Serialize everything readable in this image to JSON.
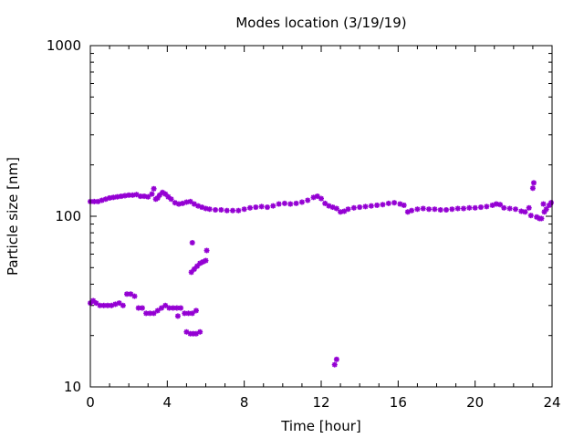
{
  "chart_data": {
    "type": "scatter",
    "title": "Modes location (3/19/19)",
    "xlabel": "Time [hour]",
    "ylabel": "Particle size [nm]",
    "xlim": [
      0,
      24
    ],
    "ylim": [
      10,
      1000
    ],
    "y_scale": "log",
    "grid": false,
    "marker_color": "#9400d3",
    "x_ticks": [
      {
        "value": 0,
        "label": "0"
      },
      {
        "value": 4,
        "label": "4"
      },
      {
        "value": 8,
        "label": "8"
      },
      {
        "value": 12,
        "label": "12"
      },
      {
        "value": 16,
        "label": "16"
      },
      {
        "value": 20,
        "label": "20"
      },
      {
        "value": 24,
        "label": "24"
      }
    ],
    "y_ticks": [
      {
        "value": 10,
        "label": "10"
      },
      {
        "value": 100,
        "label": "100"
      },
      {
        "value": 1000,
        "label": "1000"
      }
    ],
    "series": [
      {
        "points": [
          [
            0.0,
            122
          ],
          [
            0.2,
            122
          ],
          [
            0.4,
            122
          ],
          [
            0.6,
            124
          ],
          [
            0.8,
            126
          ],
          [
            1.0,
            128
          ],
          [
            1.2,
            129
          ],
          [
            1.4,
            130
          ],
          [
            1.6,
            131
          ],
          [
            1.8,
            132
          ],
          [
            2.0,
            133
          ],
          [
            2.2,
            133
          ],
          [
            2.4,
            134
          ],
          [
            2.6,
            131
          ],
          [
            2.8,
            131
          ],
          [
            3.0,
            130
          ],
          [
            3.2,
            135
          ],
          [
            3.3,
            145
          ],
          [
            3.4,
            126
          ],
          [
            3.5,
            128
          ],
          [
            3.6,
            133
          ],
          [
            3.75,
            138
          ],
          [
            3.9,
            135
          ],
          [
            4.05,
            130
          ],
          [
            4.2,
            126
          ],
          [
            4.4,
            120
          ],
          [
            4.6,
            118
          ],
          [
            4.8,
            119
          ],
          [
            5.0,
            121
          ],
          [
            5.2,
            122
          ],
          [
            5.4,
            118
          ],
          [
            5.6,
            115
          ],
          [
            5.8,
            113
          ],
          [
            6.0,
            111
          ],
          [
            6.2,
            110
          ],
          [
            6.5,
            109
          ],
          [
            6.8,
            109
          ],
          [
            7.1,
            108
          ],
          [
            7.4,
            108
          ],
          [
            7.7,
            108
          ],
          [
            8.0,
            110
          ],
          [
            8.3,
            112
          ],
          [
            8.6,
            113
          ],
          [
            8.9,
            114
          ],
          [
            9.2,
            113
          ],
          [
            9.5,
            115
          ],
          [
            9.8,
            118
          ],
          [
            10.1,
            119
          ],
          [
            10.4,
            118
          ],
          [
            10.7,
            119
          ],
          [
            11.0,
            121
          ],
          [
            11.3,
            124
          ],
          [
            11.6,
            129
          ],
          [
            11.8,
            131
          ],
          [
            12.0,
            127
          ],
          [
            12.2,
            119
          ],
          [
            12.4,
            115
          ],
          [
            12.6,
            113
          ],
          [
            12.8,
            111
          ],
          [
            13.0,
            106
          ],
          [
            13.2,
            107
          ],
          [
            13.4,
            110
          ],
          [
            13.7,
            112
          ],
          [
            14.0,
            113
          ],
          [
            14.3,
            114
          ],
          [
            14.6,
            115
          ],
          [
            14.9,
            116
          ],
          [
            15.2,
            117
          ],
          [
            15.5,
            119
          ],
          [
            15.8,
            120
          ],
          [
            16.1,
            118
          ],
          [
            16.3,
            116
          ],
          [
            16.5,
            106
          ],
          [
            16.7,
            108
          ],
          [
            17.0,
            110
          ],
          [
            17.3,
            111
          ],
          [
            17.6,
            110
          ],
          [
            17.9,
            110
          ],
          [
            18.2,
            109
          ],
          [
            18.5,
            109
          ],
          [
            18.8,
            110
          ],
          [
            19.1,
            111
          ],
          [
            19.4,
            111
          ],
          [
            19.7,
            112
          ],
          [
            20.0,
            112
          ],
          [
            20.3,
            113
          ],
          [
            20.6,
            114
          ],
          [
            20.9,
            116
          ],
          [
            21.1,
            118
          ],
          [
            21.3,
            117
          ],
          [
            21.5,
            112
          ],
          [
            21.8,
            111
          ],
          [
            22.1,
            110
          ],
          [
            22.4,
            107
          ],
          [
            22.6,
            106
          ],
          [
            22.8,
            112
          ],
          [
            22.9,
            101
          ],
          [
            23.0,
            146
          ],
          [
            23.05,
            157
          ],
          [
            23.2,
            99
          ],
          [
            23.35,
            97
          ],
          [
            23.45,
            97
          ],
          [
            23.55,
            118
          ],
          [
            23.6,
            106
          ],
          [
            23.7,
            110
          ],
          [
            23.85,
            116
          ],
          [
            23.95,
            120
          ],
          [
            0.0,
            31
          ],
          [
            0.15,
            32
          ],
          [
            0.3,
            31
          ],
          [
            0.5,
            30
          ],
          [
            0.7,
            30
          ],
          [
            0.9,
            30
          ],
          [
            1.1,
            30
          ],
          [
            1.3,
            30.5
          ],
          [
            1.5,
            31
          ],
          [
            1.7,
            30
          ],
          [
            1.9,
            35
          ],
          [
            2.1,
            35
          ],
          [
            2.3,
            34
          ],
          [
            2.5,
            29
          ],
          [
            2.7,
            29
          ],
          [
            2.9,
            27
          ],
          [
            3.1,
            27
          ],
          [
            3.3,
            27
          ],
          [
            3.5,
            28
          ],
          [
            3.7,
            29
          ],
          [
            3.9,
            30
          ],
          [
            4.1,
            29
          ],
          [
            4.3,
            29
          ],
          [
            4.5,
            29
          ],
          [
            4.55,
            26
          ],
          [
            4.7,
            29
          ],
          [
            4.9,
            27
          ],
          [
            5.1,
            27
          ],
          [
            5.3,
            27
          ],
          [
            5.5,
            28
          ],
          [
            5.0,
            21
          ],
          [
            5.2,
            20.5
          ],
          [
            5.35,
            20.5
          ],
          [
            5.5,
            20.5
          ],
          [
            5.7,
            21
          ],
          [
            5.3,
            70
          ],
          [
            5.25,
            47
          ],
          [
            5.4,
            49
          ],
          [
            5.55,
            51
          ],
          [
            5.7,
            53
          ],
          [
            5.85,
            54
          ],
          [
            6.0,
            55
          ],
          [
            6.05,
            63
          ],
          [
            12.7,
            13.5
          ],
          [
            12.8,
            14.5
          ]
        ]
      }
    ]
  }
}
